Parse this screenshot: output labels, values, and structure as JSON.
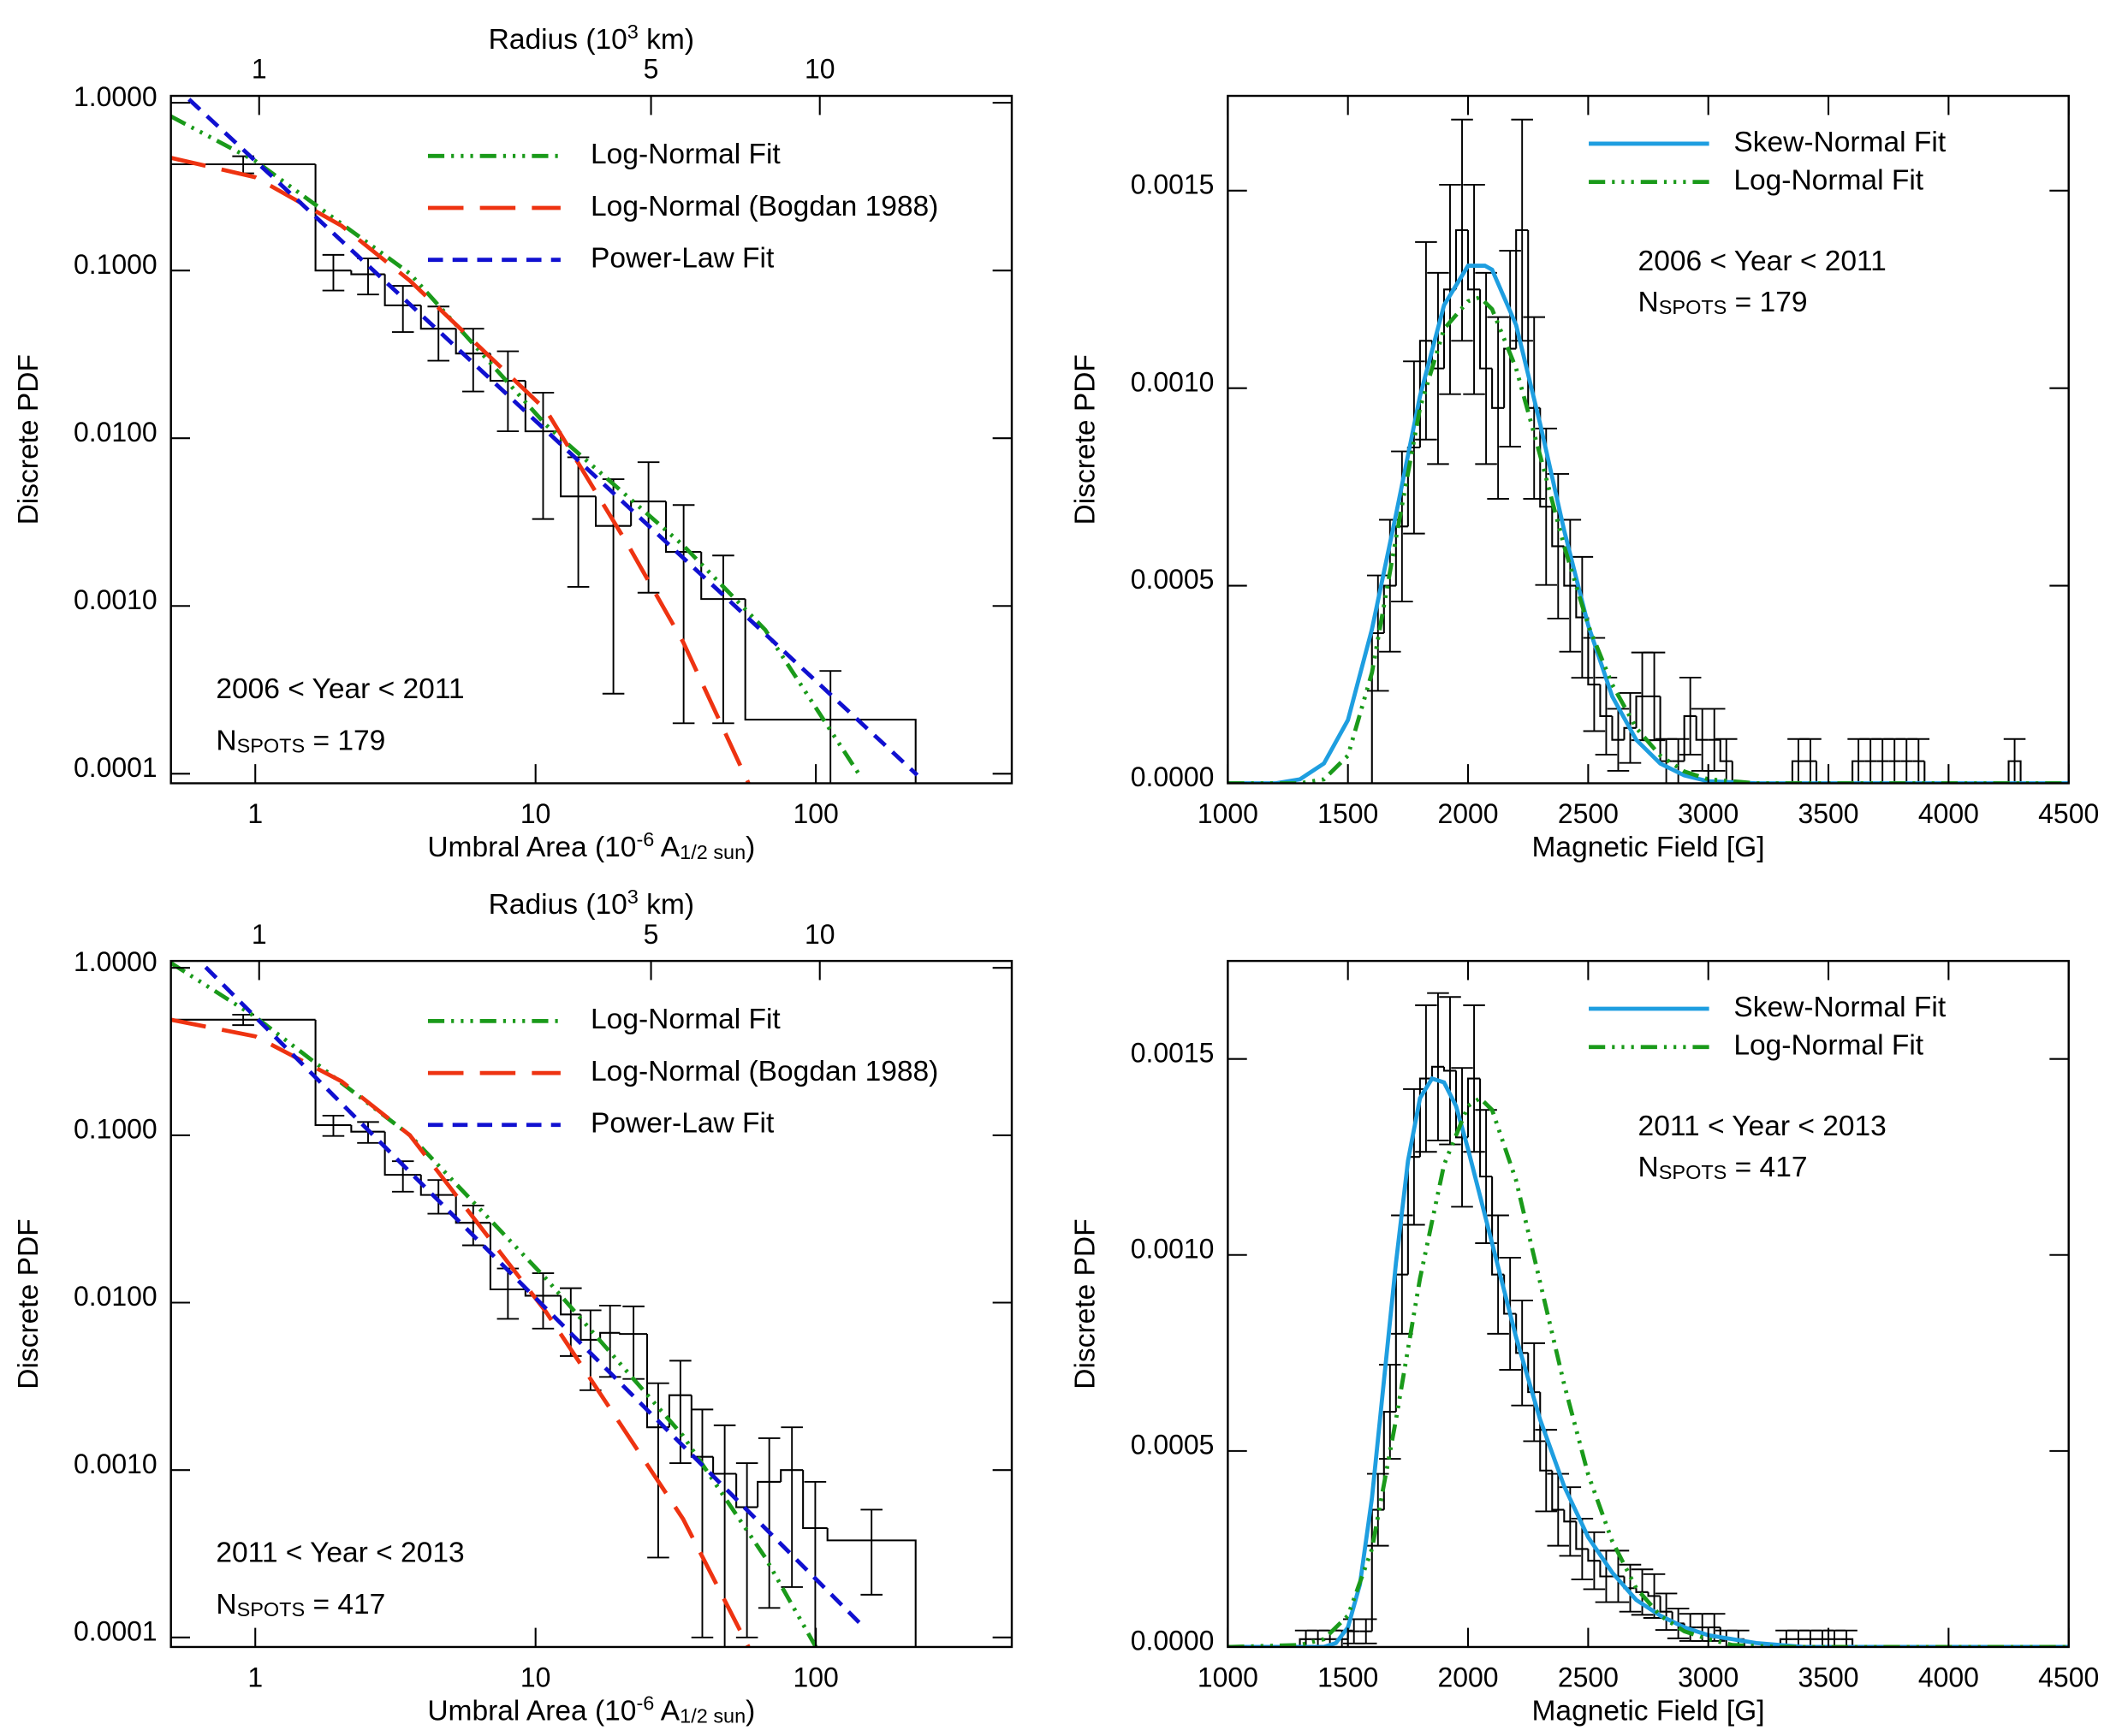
{
  "chart_data": [
    {
      "type": "histogram",
      "xlog": true,
      "ylog": true,
      "xlabel": [
        {
          "text": "Umbral Area (10"
        },
        {
          "text": "-6",
          "shift": "super"
        },
        {
          "text": " A"
        },
        {
          "text": "1/2 sun",
          "shift": "sub"
        },
        {
          "text": ")"
        }
      ],
      "ylabel": "Discrete PDF",
      "x2label": [
        {
          "text": "Radius (10"
        },
        {
          "text": "3",
          "shift": "super"
        },
        {
          "text": " km)"
        }
      ],
      "xlim": [
        0.5,
        500
      ],
      "xticks": [
        1,
        10,
        100
      ],
      "x2lim": [
        0.696,
        22.0
      ],
      "x2ticks": [
        1,
        5,
        10
      ],
      "ylim": [
        8.77e-05,
        1.1
      ],
      "yticks": [
        {
          "value": 0.0001,
          "label": "0.0001"
        },
        {
          "value": 0.001,
          "label": "0.0010"
        },
        {
          "value": 0.01,
          "label": "0.0100"
        },
        {
          "value": 0.1,
          "label": "0.1000"
        },
        {
          "value": 1,
          "label": "1.0000"
        }
      ],
      "annotations": [
        [
          {
            "text": "2006 < Year < 2011"
          }
        ],
        [
          {
            "text": "N"
          },
          {
            "text": "SPOTS",
            "shift": "sub"
          },
          {
            "text": " = 179"
          }
        ]
      ],
      "histogram": {
        "color": "#000000",
        "bins": [
          0.5,
          1.64,
          2.2,
          2.9,
          3.9,
          5.2,
          6.9,
          9.2,
          12.3,
          16.4,
          21.9,
          29.2,
          39,
          56,
          227
        ],
        "values": [
          0.43,
          0.1,
          0.095,
          0.062,
          0.045,
          0.032,
          0.022,
          0.011,
          0.0045,
          0.003,
          0.0042,
          0.0021,
          0.0011,
          0.00021
        ],
        "errors": [
          0.05,
          0.024,
          0.023,
          0.019,
          0.016,
          0.013,
          0.011,
          0.0077,
          0.0032,
          0.0027,
          0.003,
          0.0019,
          0.0009,
          0.0002
        ]
      },
      "series": [
        {
          "name": "Log-Normal Fit",
          "color": "#1a9a1a",
          "style": "dash-dot-dot",
          "x": [
            0.5,
            1,
            3.56,
            10.9,
            33.6,
            66,
            145
          ],
          "y": [
            0.83,
            0.45,
            0.096,
            0.012,
            0.0023,
            0.00072,
            9.5e-05
          ]
        },
        {
          "name": "Log-Normal (Bogdan 1988)",
          "color": "#ee3311",
          "style": "long-dash",
          "x": [
            0.5,
            1,
            2.03,
            3.56,
            10.9,
            21.4,
            33.6,
            57.5
          ],
          "y": [
            0.47,
            0.36,
            0.185,
            0.087,
            0.0147,
            0.0023,
            0.00061,
            8.77e-05
          ]
        },
        {
          "name": "Power-Law Fit",
          "color": "#1010d0",
          "style": "dash",
          "x": [
            0.5,
            230
          ],
          "y": [
            1.32,
            9.82e-05
          ]
        }
      ]
    },
    {
      "type": "histogram",
      "xlog": false,
      "ylog": false,
      "xlabel": [
        {
          "text": "Magnetic Field [G]"
        }
      ],
      "ylabel": "Discrete PDF",
      "xlim": [
        1000,
        4500
      ],
      "xticks": [
        1000,
        1500,
        2000,
        2500,
        3000,
        3500,
        4000,
        4500
      ],
      "ylim": [
        0,
        0.00174
      ],
      "yticks": [
        {
          "value": 0,
          "label": "0.0000"
        },
        {
          "value": 0.0005,
          "label": "0.0005"
        },
        {
          "value": 0.001,
          "label": "0.0010"
        },
        {
          "value": 0.0015,
          "label": "0.0015"
        }
      ],
      "annotations": [
        [
          {
            "text": "2006 < Year < 2011"
          }
        ],
        [
          {
            "text": "N"
          },
          {
            "text": "SPOTS",
            "shift": "sub"
          },
          {
            "text": " = 179"
          }
        ]
      ],
      "histogram": {
        "color": "#000000",
        "bins": [
          1600,
          1650,
          1700,
          1750,
          1800,
          1850,
          1900,
          1950,
          2000,
          2050,
          2100,
          2150,
          2200,
          2250,
          2300,
          2350,
          2400,
          2450,
          2500,
          2550,
          2600,
          2650,
          2700,
          2750,
          2800,
          2850,
          2900,
          2950,
          3000,
          3050,
          3100,
          3150,
          3200,
          3250,
          3300,
          3350,
          3400,
          3450,
          3500,
          3550,
          3600,
          3650,
          3700,
          3750,
          3800,
          3850,
          3900,
          3950,
          4000,
          4050,
          4100,
          4150,
          4200,
          4250,
          4300
        ],
        "values": [
          0.00038,
          0.0005,
          0.00065,
          0.00085,
          0.00112,
          0.00105,
          0.00125,
          0.0014,
          0.00125,
          0.00105,
          0.00095,
          0.0011,
          0.0014,
          0.00095,
          0.0007,
          0.0006,
          0.0005,
          0.00042,
          0.00025,
          0.00017,
          0.00011,
          0.00014,
          0.00022,
          0.00022,
          5.6e-05,
          5.6e-05,
          0.00017,
          0.00011,
          0.00011,
          5.6e-05,
          0,
          0,
          0,
          0,
          0,
          5.6e-05,
          5.6e-05,
          0,
          0,
          0,
          5.6e-05,
          5.6e-05,
          5.6e-05,
          5.6e-05,
          5.6e-05,
          5.6e-05,
          0,
          0,
          0,
          0,
          0,
          0,
          0,
          5.6e-05
        ],
        "errors": [
          0.000146,
          0.000167,
          0.00019,
          0.000218,
          0.00025,
          0.000242,
          0.000265,
          0.00028,
          0.000265,
          0.000242,
          0.00023,
          0.000248,
          0.00028,
          0.00023,
          0.000198,
          0.000183,
          0.000167,
          0.000153,
          0.000118,
          9.76e-05,
          7.85e-05,
          8.85e-05,
          0.000111,
          0.000111,
          5.6e-05,
          5.6e-05,
          9.76e-05,
          7.85e-05,
          7.85e-05,
          5.6e-05,
          null,
          null,
          null,
          null,
          null,
          5.6e-05,
          5.6e-05,
          null,
          null,
          null,
          5.6e-05,
          5.6e-05,
          5.6e-05,
          5.6e-05,
          5.6e-05,
          5.6e-05,
          null,
          null,
          null,
          null,
          null,
          null,
          null,
          5.6e-05
        ]
      },
      "series": [
        {
          "name": "Skew-Normal Fit",
          "color": "#1e9ee0",
          "style": "solid",
          "x": [
            1000,
            1200,
            1300,
            1400,
            1500,
            1600,
            1700,
            1800,
            1900,
            2000,
            2070,
            2100,
            2200,
            2300,
            2400,
            2500,
            2600,
            2700,
            2800,
            2900,
            3000,
            3200,
            4500
          ],
          "y": [
            0,
            0,
            1e-05,
            5e-05,
            0.00016,
            0.00039,
            0.00068,
            0.00098,
            0.00121,
            0.00131,
            0.00131,
            0.0013,
            0.00116,
            0.00091,
            0.00064,
            0.0004,
            0.00022,
            0.00011,
            5e-05,
            2e-05,
            5e-06,
            0,
            0
          ]
        },
        {
          "name": "Log-Normal Fit",
          "color": "#1a9a1a",
          "style": "dash-dot-dot",
          "x": [
            1000,
            1300,
            1400,
            1500,
            1600,
            1700,
            1800,
            1900,
            2000,
            2050,
            2100,
            2200,
            2300,
            2400,
            2500,
            2600,
            2700,
            2800,
            2900,
            3000,
            3200,
            4500
          ],
          "y": [
            0,
            0,
            1e-05,
            7e-05,
            0.00028,
            0.00062,
            0.00095,
            0.00115,
            0.00122,
            0.00123,
            0.0012,
            0.00105,
            0.00083,
            0.0006,
            0.0004,
            0.00025,
            0.00014,
            7e-05,
            3e-05,
            1e-05,
            0,
            0
          ]
        }
      ]
    },
    {
      "type": "histogram",
      "xlog": true,
      "ylog": true,
      "xlabel": [
        {
          "text": "Umbral Area (10"
        },
        {
          "text": "-6",
          "shift": "super"
        },
        {
          "text": " A"
        },
        {
          "text": "1/2 sun",
          "shift": "sub"
        },
        {
          "text": ")"
        }
      ],
      "ylabel": "Discrete PDF",
      "x2label": [
        {
          "text": "Radius (10"
        },
        {
          "text": "3",
          "shift": "super"
        },
        {
          "text": " km)"
        }
      ],
      "xlim": [
        0.5,
        500
      ],
      "xticks": [
        1,
        10,
        100
      ],
      "x2lim": [
        0.696,
        22.0
      ],
      "x2ticks": [
        1,
        5,
        10
      ],
      "ylim": [
        8.77e-05,
        1.1
      ],
      "yticks": [
        {
          "value": 0.0001,
          "label": "0.0001"
        },
        {
          "value": 0.001,
          "label": "0.0010"
        },
        {
          "value": 0.01,
          "label": "0.0100"
        },
        {
          "value": 0.1,
          "label": "0.1000"
        },
        {
          "value": 1,
          "label": "1.0000"
        }
      ],
      "annotations": [
        [
          {
            "text": "2011 < Year < 2013"
          }
        ],
        [
          {
            "text": "N"
          },
          {
            "text": "SPOTS",
            "shift": "sub"
          },
          {
            "text": " = 417"
          }
        ]
      ],
      "histogram": {
        "color": "#000000",
        "bins": [
          0.5,
          1.64,
          2.2,
          2.9,
          3.9,
          5.2,
          6.9,
          9.2,
          12.3,
          14.5,
          17,
          20,
          25,
          30,
          36,
          43,
          52,
          62,
          75,
          90,
          110,
          227
        ],
        "values": [
          0.49,
          0.115,
          0.105,
          0.058,
          0.044,
          0.03,
          0.012,
          0.011,
          0.0085,
          0.006,
          0.0066,
          0.0065,
          0.0018,
          0.0028,
          0.0012,
          0.00095,
          0.0006,
          0.00085,
          0.001,
          0.00045,
          0.00038
        ],
        "errors": [
          0.035,
          0.016,
          0.015,
          0.012,
          0.01,
          0.008,
          0.004,
          0.004,
          0.0037,
          0.003,
          0.003,
          0.003,
          0.0015,
          0.0017,
          0.0011,
          0.0009,
          0.0005,
          0.0007,
          0.0008,
          0.0004,
          0.0002
        ]
      },
      "series": [
        {
          "name": "Log-Normal Fit",
          "color": "#1a9a1a",
          "style": "dash-dot-dot",
          "x": [
            0.5,
            1,
            3.56,
            10.9,
            33.6,
            66,
            100
          ],
          "y": [
            1.07,
            0.51,
            0.1,
            0.0139,
            0.0016,
            0.0003,
            8.77e-05
          ]
        },
        {
          "name": "Log-Normal (Bogdan 1988)",
          "color": "#ee3311",
          "style": "long-dash",
          "x": [
            0.5,
            1,
            2.03,
            3.56,
            10.9,
            21.4,
            33.6,
            57.5
          ],
          "y": [
            0.49,
            0.39,
            0.21,
            0.1,
            0.0088,
            0.0016,
            0.00051,
            8.77e-05
          ]
        },
        {
          "name": "Power-Law Fit",
          "color": "#1010d0",
          "style": "dash",
          "x": [
            0.5,
            150
          ],
          "y": [
            1.63,
            0.000113
          ]
        }
      ]
    },
    {
      "type": "histogram",
      "xlog": false,
      "ylog": false,
      "xlabel": [
        {
          "text": "Magnetic Field [G]"
        }
      ],
      "ylabel": "Discrete PDF",
      "xlim": [
        1000,
        4500
      ],
      "xticks": [
        1000,
        1500,
        2000,
        2500,
        3000,
        3500,
        4000,
        4500
      ],
      "ylim": [
        0,
        0.00175
      ],
      "yticks": [
        {
          "value": 0,
          "label": "0.0000"
        },
        {
          "value": 0.0005,
          "label": "0.0005"
        },
        {
          "value": 0.001,
          "label": "0.0010"
        },
        {
          "value": 0.0015,
          "label": "0.0015"
        }
      ],
      "annotations": [
        [
          {
            "text": "2011 < Year < 2013"
          }
        ],
        [
          {
            "text": "N"
          },
          {
            "text": "SPOTS",
            "shift": "sub"
          },
          {
            "text": " = 417"
          }
        ]
      ],
      "histogram": {
        "color": "#000000",
        "bins": [
          1300,
          1350,
          1400,
          1450,
          1500,
          1550,
          1600,
          1650,
          1700,
          1750,
          1800,
          1850,
          1900,
          1950,
          2000,
          2050,
          2100,
          2150,
          2200,
          2250,
          2300,
          2350,
          2400,
          2450,
          2500,
          2550,
          2600,
          2650,
          2700,
          2750,
          2800,
          2850,
          2900,
          2950,
          3000,
          3050,
          3100,
          3150,
          3200,
          3250,
          3300,
          3350,
          3400,
          3450,
          3500,
          3550,
          3600
        ],
        "values": [
          2e-05,
          2e-05,
          2e-05,
          2e-05,
          4e-05,
          4e-05,
          0.00035,
          0.0006,
          0.00095,
          0.00125,
          0.00145,
          0.00148,
          0.00147,
          0.0013,
          0.00145,
          0.0012,
          0.00095,
          0.00085,
          0.00075,
          0.00065,
          0.00045,
          0.00035,
          0.00032,
          0.00025,
          0.00022,
          0.00018,
          0.00018,
          0.00015,
          0.00014,
          0.00013,
          9e-05,
          6e-05,
          5e-05,
          5e-05,
          5e-05,
          2e-05,
          2e-05,
          0,
          0,
          0,
          2e-05,
          2e-05,
          2e-05,
          2e-05,
          2e-05,
          2e-05
        ],
        "errors": [
          2.2e-05,
          2.2e-05,
          2.2e-05,
          2.2e-05,
          3.1e-05,
          3.1e-05,
          9.17e-05,
          0.00012,
          0.000151,
          0.000173,
          0.000187,
          0.000188,
          0.000188,
          0.000177,
          0.000187,
          0.00017,
          0.000151,
          0.000143,
          0.000134,
          0.000125,
          0.000104,
          9.17e-05,
          8.76e-05,
          7.75e-05,
          7.27e-05,
          6.57e-05,
          6.57e-05,
          6e-05,
          5.8e-05,
          5.59e-05,
          4.65e-05,
          3.8e-05,
          3.46e-05,
          3.46e-05,
          3.46e-05,
          2.2e-05,
          2.2e-05,
          null,
          null,
          null,
          2.2e-05,
          2.2e-05,
          2.2e-05,
          2.2e-05,
          2.2e-05,
          2.2e-05
        ]
      },
      "series": [
        {
          "name": "Skew-Normal Fit",
          "color": "#1e9ee0",
          "style": "solid",
          "x": [
            1000,
            1400,
            1450,
            1500,
            1550,
            1600,
            1650,
            1700,
            1750,
            1800,
            1850,
            1900,
            1950,
            2000,
            2100,
            2200,
            2300,
            2400,
            2500,
            2600,
            2700,
            2800,
            2900,
            3000,
            3200,
            3400,
            4500
          ],
          "y": [
            0,
            0,
            1e-05,
            5e-05,
            0.00016,
            0.00038,
            0.00068,
            0.00098,
            0.00124,
            0.0014,
            0.00145,
            0.00144,
            0.00138,
            0.00127,
            0.00103,
            0.00079,
            0.00058,
            0.00041,
            0.00028,
            0.00019,
            0.00012,
            8e-05,
            5e-05,
            3e-05,
            1e-05,
            0,
            0
          ]
        },
        {
          "name": "Log-Normal Fit",
          "color": "#1a9a1a",
          "style": "dash-dot-dot",
          "x": [
            1000,
            1300,
            1400,
            1500,
            1600,
            1700,
            1800,
            1900,
            2000,
            2050,
            2100,
            2200,
            2300,
            2400,
            2500,
            2600,
            2700,
            2800,
            2900,
            3000,
            3100,
            3300,
            4500
          ],
          "y": [
            0,
            5e-06,
            2e-05,
            8e-05,
            0.00025,
            0.00058,
            0.00094,
            0.00123,
            0.00138,
            0.0014,
            0.00137,
            0.00119,
            0.00093,
            0.00067,
            0.00044,
            0.00027,
            0.00015,
            8e-05,
            4e-05,
            2e-05,
            5e-06,
            0,
            0
          ]
        }
      ]
    }
  ]
}
